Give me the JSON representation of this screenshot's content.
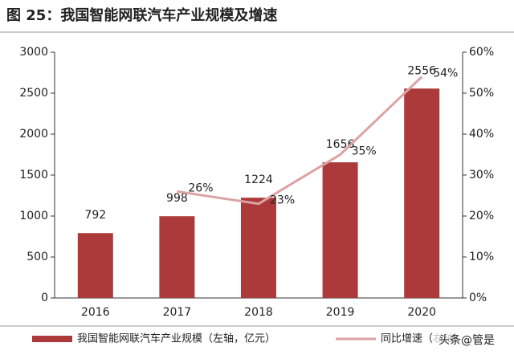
{
  "chart_data": {
    "type": "bar_line",
    "title": "图 25：我国智能网联汽车产业规模及增速",
    "categories": [
      "2016",
      "2017",
      "2018",
      "2019",
      "2020"
    ],
    "series": [
      {
        "name": "我国智能网联汽车产业规模（左轴，亿元）",
        "type": "bar",
        "color": "#ad3a3b",
        "values": [
          792,
          998,
          1224,
          1656,
          2556
        ]
      },
      {
        "name": "同比增速（右轴）",
        "type": "line",
        "axis": "y2",
        "color": "#dba3a4",
        "values": [
          null,
          26,
          23,
          35,
          54
        ],
        "value_labels": [
          null,
          "26%",
          "23%",
          "35%",
          "54%"
        ]
      }
    ],
    "ylim": [
      0,
      3000
    ],
    "yticks": [
      0,
      500,
      1000,
      1500,
      2000,
      2500,
      3000
    ],
    "y2lim": [
      0,
      60
    ],
    "y2ticks": [
      {
        "value": 0,
        "label": "0%"
      },
      {
        "value": 10,
        "label": "10%"
      },
      {
        "value": 20,
        "label": "20%"
      },
      {
        "value": 30,
        "label": "30%"
      },
      {
        "value": 40,
        "label": "40%"
      },
      {
        "value": 50,
        "label": "50%"
      },
      {
        "value": 60,
        "label": "60%"
      }
    ],
    "watermark": "头条@管是"
  }
}
